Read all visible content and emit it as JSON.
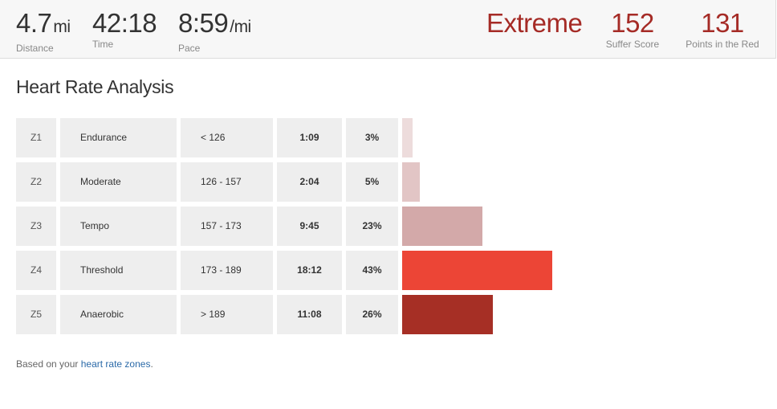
{
  "stats": {
    "distance": {
      "value": "4.7",
      "unit": "mi",
      "label": "Distance"
    },
    "time": {
      "value": "42:18",
      "label": "Time"
    },
    "pace": {
      "value": "8:59",
      "unit": "/mi",
      "label": "Pace"
    },
    "intensity": {
      "value": "Extreme"
    },
    "suffer_score": {
      "value": "152",
      "label": "Suffer Score"
    },
    "points_in_red": {
      "value": "131",
      "label": "Points in the Red"
    }
  },
  "section_title": "Heart Rate Analysis",
  "zones": [
    {
      "id": "Z1",
      "name": "Endurance",
      "range": "< 126",
      "time": "1:09",
      "percent": "3%",
      "fraction": 0.03,
      "color": "#eddcdc"
    },
    {
      "id": "Z2",
      "name": "Moderate",
      "range": "126 - 157",
      "time": "2:04",
      "percent": "5%",
      "fraction": 0.05,
      "color": "#e2c5c5"
    },
    {
      "id": "Z3",
      "name": "Tempo",
      "range": "157 - 173",
      "time": "9:45",
      "percent": "23%",
      "fraction": 0.23,
      "color": "#d3a9a9"
    },
    {
      "id": "Z4",
      "name": "Threshold",
      "range": "173 - 189",
      "time": "18:12",
      "percent": "43%",
      "fraction": 0.43,
      "color": "#ec4536"
    },
    {
      "id": "Z5",
      "name": "Anaerobic",
      "range": "> 189",
      "time": "11:08",
      "percent": "26%",
      "fraction": 0.26,
      "color": "#a62f25"
    }
  ],
  "footnote": {
    "prefix": "Based on your ",
    "link_text": "heart rate zones",
    "suffix": "."
  }
}
